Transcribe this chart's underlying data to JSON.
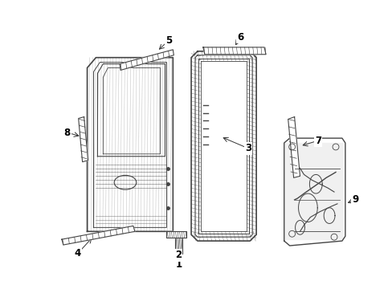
{
  "background_color": "#ffffff",
  "line_color": "#444444",
  "label_color": "#000000",
  "fig_width": 4.89,
  "fig_height": 3.6,
  "dpi": 100,
  "label_fontsize": 8.5
}
